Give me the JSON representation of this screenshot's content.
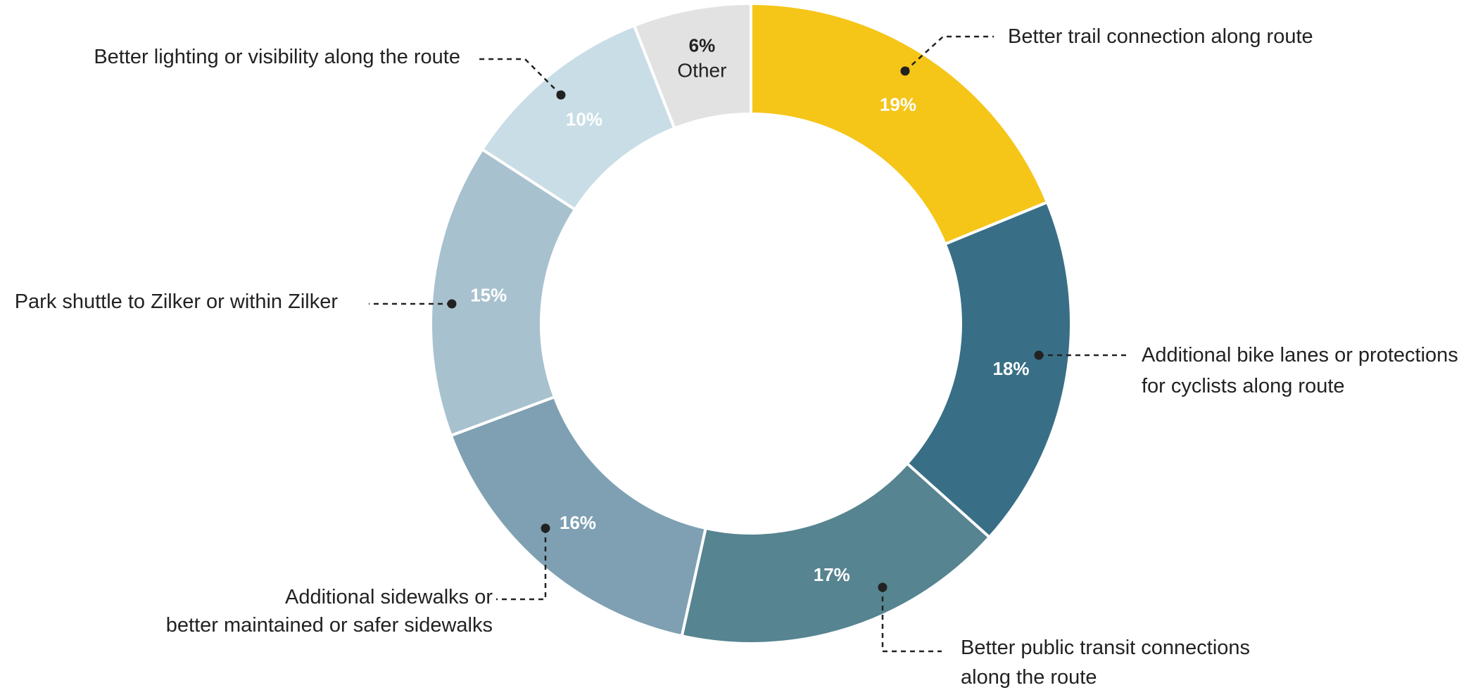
{
  "chart_data": {
    "type": "pie",
    "variant": "donut",
    "start_angle_deg": 0,
    "direction": "clockwise",
    "slices": [
      {
        "value": 19,
        "label": "19%",
        "category": [
          "Better trail connection along route"
        ],
        "color": "#F5C518",
        "label_dark": false
      },
      {
        "value": 18,
        "label": "18%",
        "category": [
          "Additional bike lanes or protections",
          "for cyclists along route"
        ],
        "color": "#386F86",
        "label_dark": false
      },
      {
        "value": 17,
        "label": "17%",
        "category": [
          "Better public transit connections",
          "along the route"
        ],
        "color": "#568490",
        "label_dark": false
      },
      {
        "value": 16,
        "label": "16%",
        "category": [
          "Additional sidewalks or",
          "better maintained or safer sidewalks"
        ],
        "color": "#7EA0B2",
        "label_dark": false
      },
      {
        "value": 15,
        "label": "15%",
        "category": [
          "Park shuttle to Zilker or within Zilker"
        ],
        "color": "#A8C1CF",
        "label_dark": false
      },
      {
        "value": 10,
        "label": "10%",
        "category": [
          "Better lighting or visibility along the route"
        ],
        "color": "#C9DDE6",
        "label_dark": false
      },
      {
        "value": 6,
        "label": "6%",
        "category": [
          "Other"
        ],
        "color": "#E2E2E2",
        "label_dark": true,
        "inline_category": true
      }
    ]
  }
}
